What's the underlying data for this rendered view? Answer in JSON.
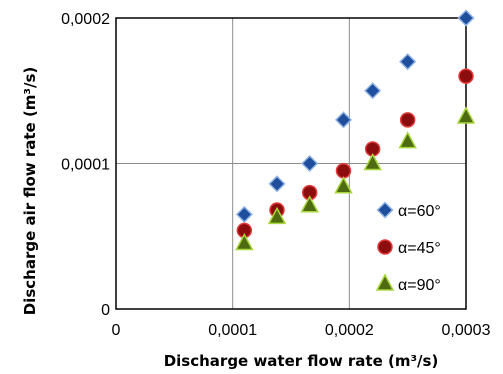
{
  "chart_data": {
    "type": "scatter",
    "xlabel": "Discharge water flow rate (m³/s)",
    "ylabel": "Discharge air flow rate (m³/s)",
    "xlim": [
      0,
      0.0003
    ],
    "ylim": [
      0,
      0.0002
    ],
    "x_ticks": [
      0,
      0.0001,
      0.0002,
      0.0003
    ],
    "y_ticks": [
      0,
      0.0001,
      0.0002
    ],
    "x_tick_labels": [
      "0",
      "0,0001",
      "0,0002",
      "0,0003"
    ],
    "y_tick_labels": [
      "0",
      "0,0001",
      "0,0002"
    ],
    "grid": true,
    "legend_position": "right",
    "series": [
      {
        "name": "α=60°",
        "marker": "diamond",
        "color": "#1f4e9c",
        "edge_color": "#8fb3e6",
        "x": [
          0.00011,
          0.000138,
          0.000166,
          0.000195,
          0.00022,
          0.00025,
          0.0003
        ],
        "y": [
          6.5e-05,
          8.6e-05,
          0.0001,
          0.00013,
          0.00015,
          0.00017,
          0.0002
        ]
      },
      {
        "name": "α=45°",
        "marker": "circle",
        "color": "#8b0d0d",
        "edge_color": "#e23b3b",
        "x": [
          0.00011,
          0.000138,
          0.000166,
          0.000195,
          0.00022,
          0.00025,
          0.0003
        ],
        "y": [
          5.4e-05,
          6.8e-05,
          8e-05,
          9.5e-05,
          0.00011,
          0.00013,
          0.00016
        ]
      },
      {
        "name": "α=90°",
        "marker": "triangle",
        "color": "#4f6b12",
        "edge_color": "#a7d63b",
        "x": [
          0.00011,
          0.000138,
          0.000166,
          0.000195,
          0.00022,
          0.00025,
          0.0003
        ],
        "y": [
          4.5e-05,
          6.3e-05,
          7.1e-05,
          8.4e-05,
          0.0001,
          0.000115,
          0.000132
        ]
      }
    ]
  }
}
